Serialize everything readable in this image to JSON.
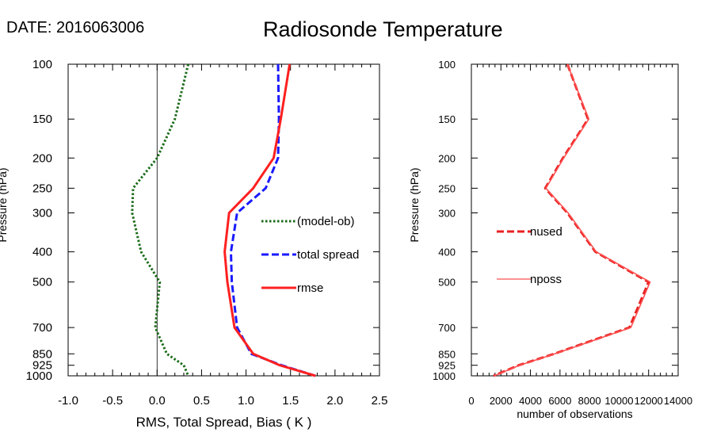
{
  "header": {
    "date_label": "DATE: 2016063006",
    "title": "Radiosonde Temperature"
  },
  "chart_data": [
    {
      "type": "line",
      "xlabel": "RMS, Total Spread, Bias ( K )",
      "ylabel": "Pressure (hPa)",
      "xlim": [
        -1.0,
        2.5
      ],
      "ylim": [
        1000,
        100
      ],
      "y_scale": "log",
      "x_ticks": [
        "-1.0",
        "-0.5",
        "0.0",
        "0.5",
        "1.0",
        "1.5",
        "2.0",
        "2.5"
      ],
      "y_ticks": [
        "100",
        "150",
        "200",
        "250",
        "300",
        "400",
        "500",
        "700",
        "850",
        "925",
        "1000"
      ],
      "zero_line": true,
      "legend_position": "center-right",
      "pressure_levels": [
        100,
        150,
        200,
        250,
        300,
        400,
        500,
        700,
        850,
        925,
        1000
      ],
      "series": [
        {
          "name": "(model-ob)",
          "color": "#1a6b1a",
          "style": "dotted",
          "values": [
            0.35,
            0.2,
            0.0,
            -0.27,
            -0.28,
            -0.18,
            0.03,
            -0.02,
            0.11,
            0.3,
            0.35
          ]
        },
        {
          "name": "total spread",
          "color": "#1a1aff",
          "style": "dashed",
          "values": [
            1.36,
            1.37,
            1.36,
            1.22,
            0.9,
            0.83,
            0.84,
            0.9,
            1.06,
            1.4,
            1.78
          ]
        },
        {
          "name": "rmse",
          "color": "#ff2020",
          "style": "solid",
          "values": [
            1.49,
            1.39,
            1.31,
            1.08,
            0.81,
            0.76,
            0.79,
            0.87,
            1.08,
            1.38,
            1.78
          ]
        }
      ]
    },
    {
      "type": "line",
      "xlabel": "number of observations",
      "ylabel": "Pressure (hPa)",
      "xlim": [
        0,
        14000
      ],
      "ylim": [
        1000,
        100
      ],
      "y_scale": "log",
      "x_ticks": [
        "0",
        "2000",
        "4000",
        "6000",
        "8000",
        "10000",
        "12000",
        "14000"
      ],
      "y_ticks": [
        "100",
        "150",
        "200",
        "250",
        "300",
        "400",
        "500",
        "700",
        "850",
        "925",
        "1000"
      ],
      "legend_position": "center-left",
      "pressure_levels": [
        100,
        150,
        200,
        250,
        300,
        400,
        500,
        700,
        850,
        925,
        1000
      ],
      "series": [
        {
          "name": "nused",
          "color": "#e82020",
          "style": "dashed",
          "values": [
            6500,
            7900,
            6200,
            5000,
            6500,
            8400,
            12000,
            10700,
            5600,
            3200,
            1500
          ]
        },
        {
          "name": "nposs",
          "color": "#ff5050",
          "style": "solid",
          "values": [
            6500,
            7950,
            6250,
            5050,
            6550,
            8450,
            12100,
            10800,
            5650,
            3250,
            1550
          ]
        }
      ]
    }
  ]
}
